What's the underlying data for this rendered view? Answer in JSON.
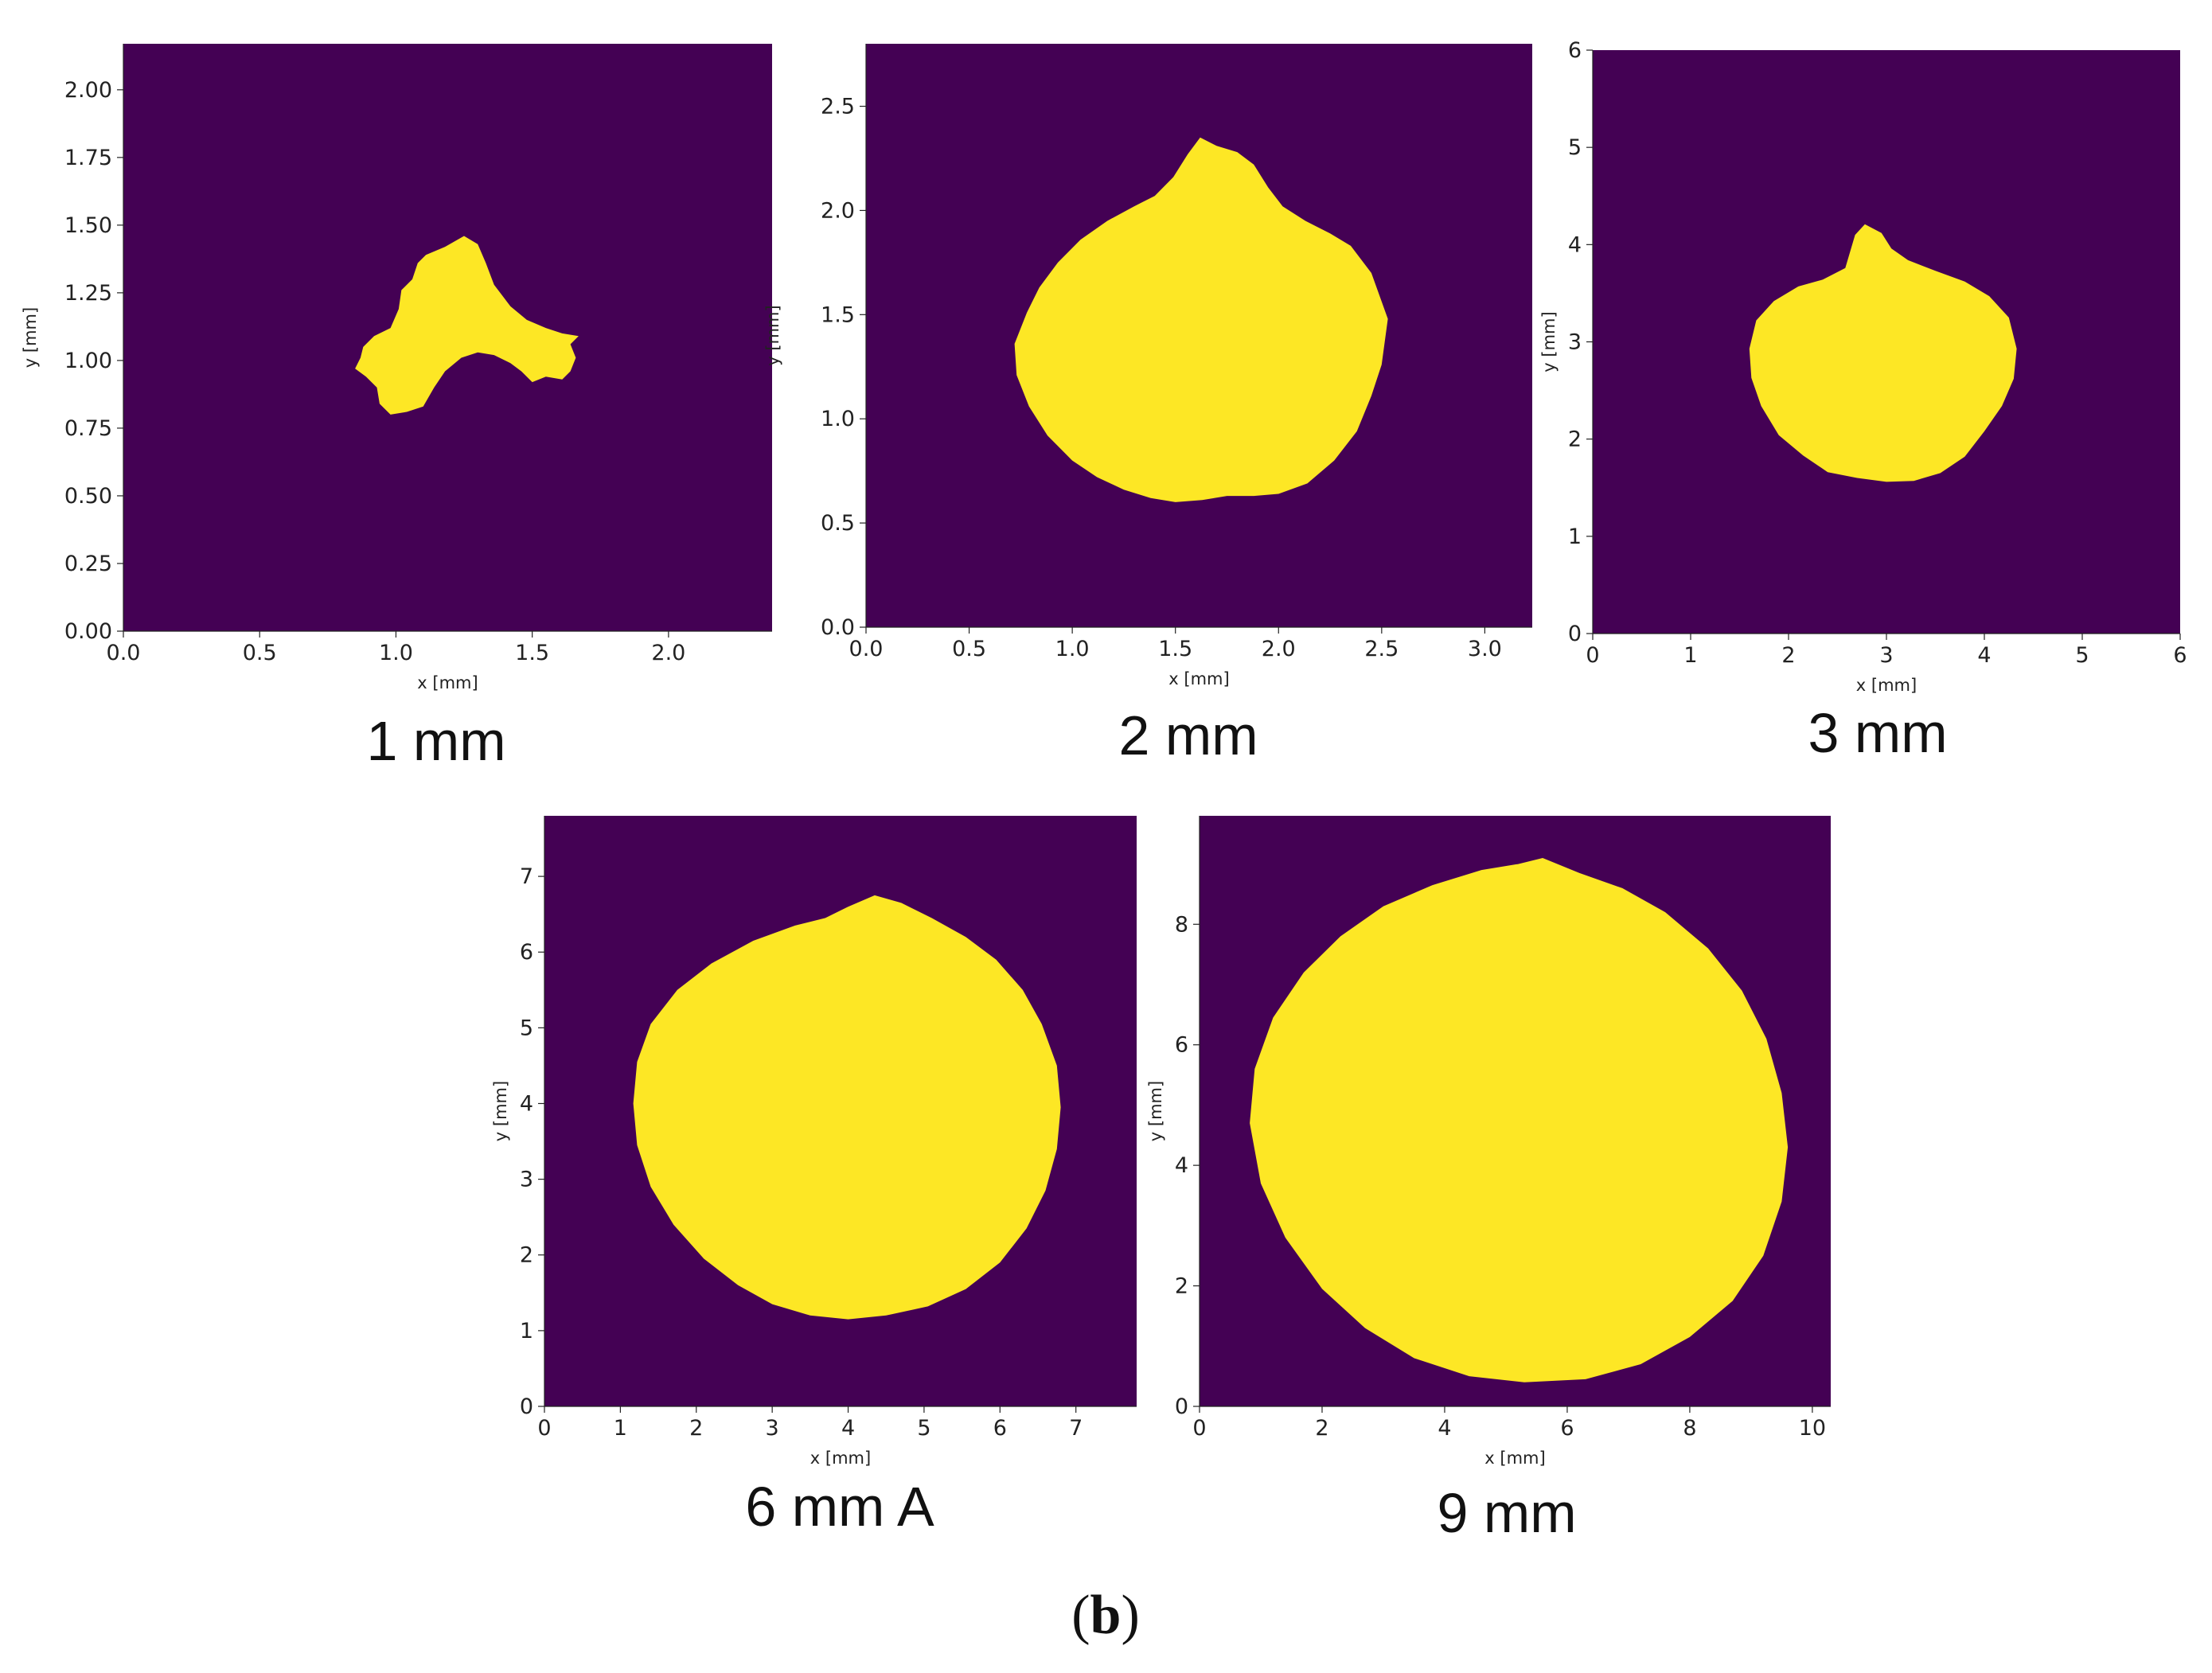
{
  "figure_label": {
    "open": "(",
    "letter": "b",
    "close": ")"
  },
  "colors": {
    "background": "#440154",
    "region": "#fde725",
    "axis": "#222222"
  },
  "chart_data": [
    {
      "type": "heatmap",
      "caption": "1 mm",
      "xlabel": "x [mm]",
      "ylabel": "y [mm]",
      "xlim": [
        0,
        2.38
      ],
      "ylim": [
        0,
        2.17
      ],
      "xticks": [
        "0.0",
        "0.5",
        "1.0",
        "1.5",
        "2.0"
      ],
      "xtick_values": [
        0,
        0.5,
        1.0,
        1.5,
        2.0
      ],
      "yticks": [
        "0.00",
        "0.25",
        "0.50",
        "0.75",
        "1.00",
        "1.25",
        "1.50",
        "1.75",
        "2.00"
      ],
      "ytick_values": [
        0,
        0.25,
        0.5,
        0.75,
        1.0,
        1.25,
        1.5,
        1.75,
        2.0
      ],
      "region_outline": [
        [
          1.11,
          1.39
        ],
        [
          1.18,
          1.42
        ],
        [
          1.25,
          1.46
        ],
        [
          1.3,
          1.43
        ],
        [
          1.33,
          1.36
        ],
        [
          1.36,
          1.28
        ],
        [
          1.42,
          1.2
        ],
        [
          1.48,
          1.15
        ],
        [
          1.55,
          1.12
        ],
        [
          1.61,
          1.1
        ],
        [
          1.67,
          1.09
        ],
        [
          1.64,
          1.06
        ],
        [
          1.66,
          1.01
        ],
        [
          1.64,
          0.96
        ],
        [
          1.61,
          0.93
        ],
        [
          1.55,
          0.94
        ],
        [
          1.5,
          0.92
        ],
        [
          1.46,
          0.96
        ],
        [
          1.42,
          0.99
        ],
        [
          1.36,
          1.02
        ],
        [
          1.3,
          1.03
        ],
        [
          1.24,
          1.01
        ],
        [
          1.18,
          0.96
        ],
        [
          1.14,
          0.9
        ],
        [
          1.1,
          0.83
        ],
        [
          1.04,
          0.81
        ],
        [
          0.98,
          0.8
        ],
        [
          0.94,
          0.84
        ],
        [
          0.93,
          0.9
        ],
        [
          0.89,
          0.94
        ],
        [
          0.85,
          0.97
        ],
        [
          0.87,
          1.01
        ],
        [
          0.88,
          1.05
        ],
        [
          0.92,
          1.09
        ],
        [
          0.98,
          1.12
        ],
        [
          1.01,
          1.19
        ],
        [
          1.02,
          1.26
        ],
        [
          1.06,
          1.3
        ],
        [
          1.08,
          1.36
        ]
      ]
    },
    {
      "type": "heatmap",
      "caption": "2 mm",
      "xlabel": "x [mm]",
      "ylabel": "y [mm]",
      "xlim": [
        0,
        3.23
      ],
      "ylim": [
        0,
        2.8
      ],
      "xticks": [
        "0.0",
        "0.5",
        "1.0",
        "1.5",
        "2.0",
        "2.5",
        "3.0"
      ],
      "xtick_values": [
        0,
        0.5,
        1.0,
        1.5,
        2.0,
        2.5,
        3.0
      ],
      "yticks": [
        "0.0",
        "0.5",
        "1.0",
        "1.5",
        "2.0",
        "2.5"
      ],
      "ytick_values": [
        0,
        0.5,
        1.0,
        1.5,
        2.0,
        2.5
      ],
      "region_outline": [
        [
          1.56,
          2.27
        ],
        [
          1.62,
          2.35
        ],
        [
          1.7,
          2.31
        ],
        [
          1.8,
          2.28
        ],
        [
          1.88,
          2.22
        ],
        [
          1.95,
          2.11
        ],
        [
          2.02,
          2.02
        ],
        [
          2.13,
          1.95
        ],
        [
          2.25,
          1.89
        ],
        [
          2.35,
          1.83
        ],
        [
          2.45,
          1.7
        ],
        [
          2.53,
          1.48
        ],
        [
          2.5,
          1.26
        ],
        [
          2.45,
          1.11
        ],
        [
          2.38,
          0.94
        ],
        [
          2.27,
          0.8
        ],
        [
          2.14,
          0.69
        ],
        [
          2.0,
          0.64
        ],
        [
          1.88,
          0.63
        ],
        [
          1.75,
          0.63
        ],
        [
          1.63,
          0.61
        ],
        [
          1.5,
          0.6
        ],
        [
          1.38,
          0.62
        ],
        [
          1.25,
          0.66
        ],
        [
          1.12,
          0.72
        ],
        [
          1.0,
          0.8
        ],
        [
          0.88,
          0.92
        ],
        [
          0.79,
          1.06
        ],
        [
          0.73,
          1.21
        ],
        [
          0.72,
          1.36
        ],
        [
          0.78,
          1.51
        ],
        [
          0.84,
          1.63
        ],
        [
          0.93,
          1.75
        ],
        [
          1.04,
          1.86
        ],
        [
          1.17,
          1.95
        ],
        [
          1.3,
          2.02
        ],
        [
          1.4,
          2.07
        ],
        [
          1.49,
          2.16
        ]
      ]
    },
    {
      "type": "heatmap",
      "caption": "3 mm",
      "xlabel": "x [mm]",
      "ylabel": "y [mm]",
      "xlim": [
        0,
        6
      ],
      "ylim": [
        0,
        6
      ],
      "xticks": [
        "0",
        "1",
        "2",
        "3",
        "4",
        "5",
        "6"
      ],
      "xtick_values": [
        0,
        1,
        2,
        3,
        4,
        5,
        6
      ],
      "yticks": [
        "0",
        "1",
        "2",
        "3",
        "4",
        "5",
        "6"
      ],
      "ytick_values": [
        0,
        1,
        2,
        3,
        4,
        5,
        6
      ],
      "region_outline": [
        [
          2.58,
          3.76
        ],
        [
          2.68,
          4.1
        ],
        [
          2.78,
          4.21
        ],
        [
          2.95,
          4.12
        ],
        [
          3.05,
          3.96
        ],
        [
          3.22,
          3.84
        ],
        [
          3.5,
          3.73
        ],
        [
          3.8,
          3.62
        ],
        [
          4.05,
          3.47
        ],
        [
          4.25,
          3.25
        ],
        [
          4.33,
          2.93
        ],
        [
          4.3,
          2.62
        ],
        [
          4.18,
          2.34
        ],
        [
          4.0,
          2.08
        ],
        [
          3.8,
          1.82
        ],
        [
          3.55,
          1.65
        ],
        [
          3.28,
          1.57
        ],
        [
          3.0,
          1.56
        ],
        [
          2.7,
          1.6
        ],
        [
          2.4,
          1.66
        ],
        [
          2.15,
          1.83
        ],
        [
          1.9,
          2.04
        ],
        [
          1.72,
          2.34
        ],
        [
          1.62,
          2.63
        ],
        [
          1.6,
          2.93
        ],
        [
          1.67,
          3.22
        ],
        [
          1.85,
          3.42
        ],
        [
          2.1,
          3.57
        ],
        [
          2.35,
          3.64
        ]
      ]
    },
    {
      "type": "heatmap",
      "caption": "6 mm A",
      "xlabel": "x [mm]",
      "ylabel": "y [mm]",
      "xlim": [
        0,
        7.8
      ],
      "ylim": [
        0,
        7.8
      ],
      "xticks": [
        "0",
        "1",
        "2",
        "3",
        "4",
        "5",
        "6",
        "7"
      ],
      "xtick_values": [
        0,
        1,
        2,
        3,
        4,
        5,
        6,
        7
      ],
      "yticks": [
        "0",
        "1",
        "2",
        "3",
        "4",
        "5",
        "6",
        "7"
      ],
      "ytick_values": [
        0,
        1,
        2,
        3,
        4,
        5,
        6,
        7
      ],
      "region_outline": [
        [
          4.0,
          6.6
        ],
        [
          4.35,
          6.75
        ],
        [
          4.7,
          6.65
        ],
        [
          5.1,
          6.45
        ],
        [
          5.55,
          6.2
        ],
        [
          5.95,
          5.9
        ],
        [
          6.3,
          5.5
        ],
        [
          6.55,
          5.05
        ],
        [
          6.75,
          4.5
        ],
        [
          6.8,
          3.95
        ],
        [
          6.75,
          3.4
        ],
        [
          6.6,
          2.85
        ],
        [
          6.35,
          2.35
        ],
        [
          6.0,
          1.9
        ],
        [
          5.55,
          1.55
        ],
        [
          5.05,
          1.32
        ],
        [
          4.5,
          1.2
        ],
        [
          4.0,
          1.15
        ],
        [
          3.5,
          1.2
        ],
        [
          3.0,
          1.35
        ],
        [
          2.55,
          1.6
        ],
        [
          2.1,
          1.95
        ],
        [
          1.7,
          2.4
        ],
        [
          1.4,
          2.9
        ],
        [
          1.22,
          3.45
        ],
        [
          1.17,
          4.0
        ],
        [
          1.22,
          4.55
        ],
        [
          1.4,
          5.05
        ],
        [
          1.75,
          5.5
        ],
        [
          2.2,
          5.85
        ],
        [
          2.75,
          6.15
        ],
        [
          3.3,
          6.35
        ],
        [
          3.7,
          6.45
        ]
      ]
    },
    {
      "type": "heatmap",
      "caption": "9 mm",
      "xlabel": "x [mm]",
      "ylabel": "y [mm]",
      "xlim": [
        0,
        10.3
      ],
      "ylim": [
        0,
        9.8
      ],
      "xticks": [
        "0",
        "2",
        "4",
        "6",
        "8",
        "10"
      ],
      "xtick_values": [
        0,
        2,
        4,
        6,
        8,
        10
      ],
      "yticks": [
        "0",
        "2",
        "4",
        "6",
        "8"
      ],
      "ytick_values": [
        0,
        2,
        4,
        6,
        8
      ],
      "region_outline": [
        [
          5.2,
          9.0
        ],
        [
          5.6,
          9.1
        ],
        [
          6.2,
          8.85
        ],
        [
          6.9,
          8.6
        ],
        [
          7.6,
          8.2
        ],
        [
          8.3,
          7.6
        ],
        [
          8.85,
          6.9
        ],
        [
          9.25,
          6.1
        ],
        [
          9.5,
          5.2
        ],
        [
          9.6,
          4.3
        ],
        [
          9.5,
          3.4
        ],
        [
          9.2,
          2.5
        ],
        [
          8.7,
          1.75
        ],
        [
          8.0,
          1.15
        ],
        [
          7.2,
          0.7
        ],
        [
          6.3,
          0.45
        ],
        [
          5.3,
          0.4
        ],
        [
          4.4,
          0.5
        ],
        [
          3.5,
          0.8
        ],
        [
          2.7,
          1.3
        ],
        [
          2.0,
          1.95
        ],
        [
          1.4,
          2.8
        ],
        [
          1.0,
          3.7
        ],
        [
          0.82,
          4.7
        ],
        [
          0.9,
          5.6
        ],
        [
          1.2,
          6.45
        ],
        [
          1.7,
          7.2
        ],
        [
          2.3,
          7.8
        ],
        [
          3.0,
          8.3
        ],
        [
          3.8,
          8.65
        ],
        [
          4.6,
          8.9
        ]
      ]
    }
  ]
}
